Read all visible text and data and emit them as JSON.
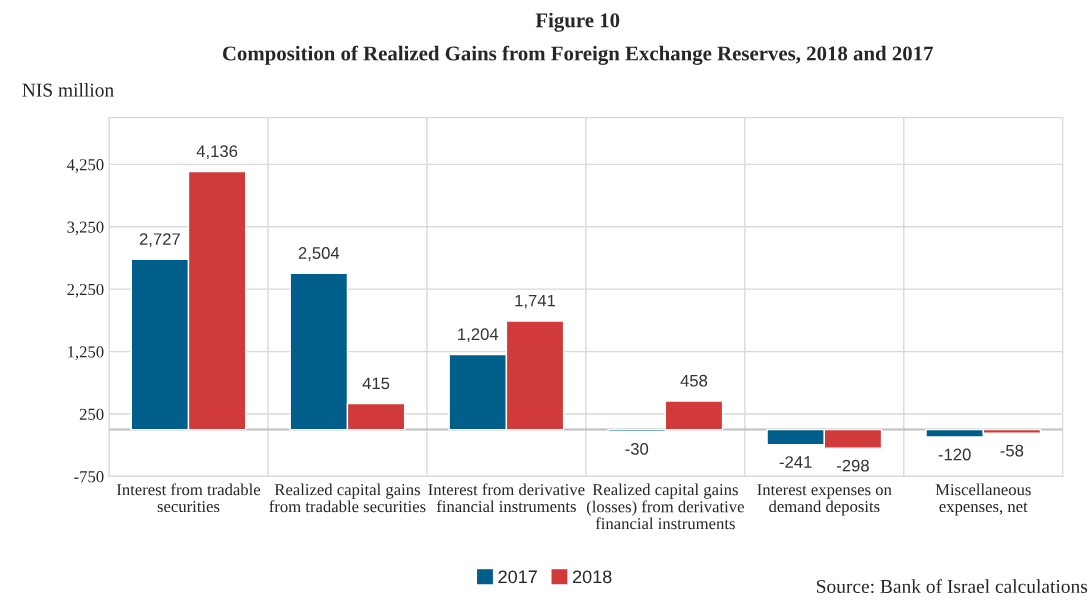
{
  "chart_data": {
    "type": "bar",
    "title": "Figure 10",
    "subtitle": "Composition of Realized Gains from Foreign Exchange Reserves, 2018 and 2017",
    "ylabel": "NIS million",
    "categories": [
      "Interest from tradable securities",
      "Realized capital gains from tradable securities",
      "Interest from derivative financial instruments",
      "Realized capital gains (losses) from derivative financial instruments",
      "Interest expenses on demand deposits",
      "Miscellaneous expenses, net"
    ],
    "series": [
      {
        "name": "2017",
        "color": "#005f8a",
        "values": [
          2727,
          2504,
          1204,
          -30,
          -241,
          -120
        ],
        "value_labels": [
          "2,727",
          "2,504",
          "1,204",
          "-30",
          "-241",
          "-120"
        ]
      },
      {
        "name": "2018",
        "color": "#d03a3a",
        "values": [
          4136,
          415,
          1741,
          458,
          -298,
          -58
        ],
        "value_labels": [
          "4,136",
          "415",
          "1,741",
          "458",
          "-298",
          "-58"
        ]
      }
    ],
    "ylim": [
      -750,
      5000
    ],
    "yticks": [
      -750,
      250,
      {
        "value": 1250,
        "label": "1,250"
      },
      {
        "value": 2250,
        "label": "2,250"
      },
      {
        "value": 3250,
        "label": "3,250"
      },
      {
        "value": 4250,
        "label": "4,250"
      }
    ],
    "ref_lines": [
      {
        "axis": "y",
        "value": 0,
        "color": "#bfbfbf"
      }
    ],
    "grid": true,
    "legend": "bottom",
    "annotations": [
      "Source: Bank of Israel calculations"
    ]
  }
}
